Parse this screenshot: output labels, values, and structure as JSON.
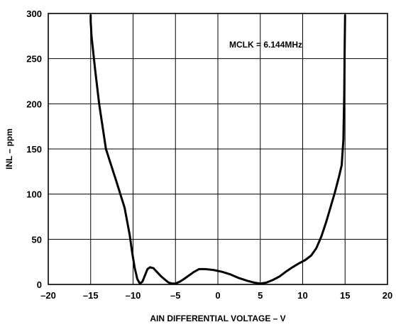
{
  "chart_data": {
    "type": "line",
    "xlabel": "AIN DIFFERENTIAL VOLTAGE – V",
    "ylabel": "INL – ppm",
    "xlim": [
      -20,
      20
    ],
    "ylim": [
      0,
      300
    ],
    "grid": true,
    "x_ticks": [
      -20,
      -15,
      -10,
      -5,
      0,
      5,
      10,
      15,
      20
    ],
    "x_tick_labels": [
      "–20",
      "–15",
      "–10",
      "–5",
      "0",
      "5",
      "10",
      "15",
      "20"
    ],
    "y_ticks": [
      0,
      50,
      100,
      150,
      200,
      250,
      300
    ],
    "y_tick_labels": [
      "0",
      "50",
      "100",
      "150",
      "200",
      "250",
      "300"
    ],
    "annotation": "MCLK = 6.144MHz",
    "series": [
      {
        "color": "#000000",
        "x": [
          -15.0,
          -15.0,
          -14.9,
          -14.5,
          -14.0,
          -13.2,
          -12.0,
          -11.0,
          -10.4,
          -10.1,
          -9.8,
          -9.5,
          -9.2,
          -8.9,
          -8.6,
          -8.3,
          -8.0,
          -7.6,
          -7.2,
          -6.7,
          -6.2,
          -5.8,
          -5.4,
          -5.0,
          -4.5,
          -4.0,
          -3.4,
          -2.8,
          -2.2,
          -1.5,
          -0.5,
          0.5,
          1.5,
          2.5,
          3.5,
          4.3,
          5.0,
          5.7,
          6.5,
          7.3,
          8.0,
          8.8,
          9.5,
          10.3,
          11.0,
          11.6,
          12.2,
          12.8,
          13.3,
          13.8,
          14.3,
          14.6,
          14.8,
          14.9,
          14.95,
          15.0
        ],
        "y": [
          298,
          292,
          275,
          240,
          200,
          150,
          115,
          85,
          55,
          35,
          18,
          6,
          1,
          3,
          10,
          17,
          19,
          18,
          14,
          9,
          5,
          2,
          1,
          1,
          3,
          6,
          10,
          14,
          17,
          17,
          16,
          14,
          11,
          7,
          4,
          2,
          1,
          2,
          5,
          9,
          14,
          19,
          23,
          27,
          32,
          40,
          53,
          70,
          86,
          102,
          120,
          132,
          160,
          210,
          260,
          298
        ]
      }
    ]
  }
}
